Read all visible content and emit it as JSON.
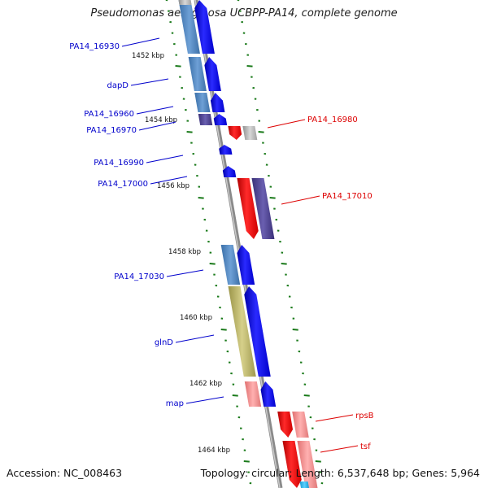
{
  "title": "Pseudomonas aeruginosa UCBPP-PA14, complete genome",
  "footer": {
    "accession": "Accession: NC_008463",
    "summary": "Topology: circular; Length: 6,537,648 bp; Genes: 5,964"
  },
  "scale_ticks": [
    "1452 kbp",
    "1454 kbp",
    "1456 kbp",
    "1458 kbp",
    "1460 kbp",
    "1462 kbp",
    "1464 kbp"
  ],
  "left_labels": [
    "PA14_16930",
    "dapD",
    "PA14_16960",
    "PA14_16970",
    "PA14_16990",
    "PA14_17000",
    "PA14_17030",
    "glnD",
    "map"
  ],
  "right_labels": [
    "PA14_16980",
    "PA14_17010",
    "rpsB",
    "tsf"
  ],
  "colors": {
    "forward_label": "#0000cc",
    "reverse_label": "#dd0000",
    "backbone": "#8a8a8a",
    "tick": "#1a7a1a",
    "cds_forward": "#0000ee",
    "cds_reverse": "#ee0000",
    "cog_blue": "#4f86c0",
    "cog_purple": "#4a3f8f",
    "cog_olive": "#b8b060",
    "cog_pink": "#f08c8c",
    "cog_grey": "#b0b0b0"
  }
}
